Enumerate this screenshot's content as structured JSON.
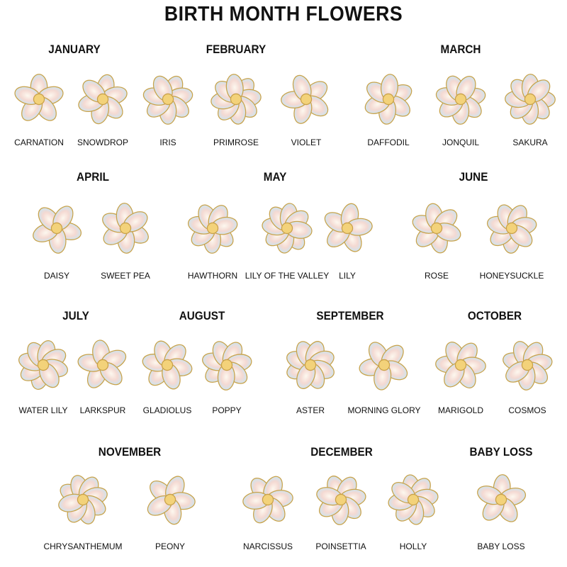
{
  "title": "BIRTH MONTH FLOWERS",
  "colors": {
    "petal_light": "#fdf8ef",
    "petal_pink": "#f4d9d2",
    "petal_blue": "#cfe4ee",
    "gold": "#c9a24a",
    "leaf": "#2e8b6e"
  },
  "groups": [
    {
      "month": "JANUARY",
      "flowers": [
        "CARNATION",
        "SNOWDROP"
      ]
    },
    {
      "month": "FEBRUARY",
      "flowers": [
        "IRIS",
        "PRIMROSE",
        "VIOLET"
      ]
    },
    {
      "month": "MARCH",
      "flowers": [
        "DAFFODIL",
        "JONQUIL",
        "SAKURA"
      ]
    },
    {
      "month": "APRIL",
      "flowers": [
        "DAISY",
        "SWEET PEA"
      ]
    },
    {
      "month": "MAY",
      "flowers": [
        "HAWTHORN",
        "LILY OF THE VALLEY",
        "LILY"
      ]
    },
    {
      "month": "JUNE",
      "flowers": [
        "ROSE",
        "HONEYSUCKLE"
      ]
    },
    {
      "month": "JULY",
      "flowers": [
        "WATER LILY",
        "LARKSPUR"
      ]
    },
    {
      "month": "AUGUST",
      "flowers": [
        "GLADIOLUS",
        "POPPY"
      ]
    },
    {
      "month": "SEPTEMBER",
      "flowers": [
        "ASTER",
        "MORNING GLORY"
      ]
    },
    {
      "month": "OCTOBER",
      "flowers": [
        "MARIGOLD",
        "COSMOS"
      ]
    },
    {
      "month": "NOVEMBER",
      "flowers": [
        "CHRYSANTHEMUM",
        "PEONY"
      ]
    },
    {
      "month": "DECEMBER",
      "flowers": [
        "NARCISSUS",
        "POINSETTIA",
        "HOLLY"
      ]
    },
    {
      "month": "BABY LOSS",
      "flowers": [
        "BABY LOSS"
      ]
    }
  ]
}
